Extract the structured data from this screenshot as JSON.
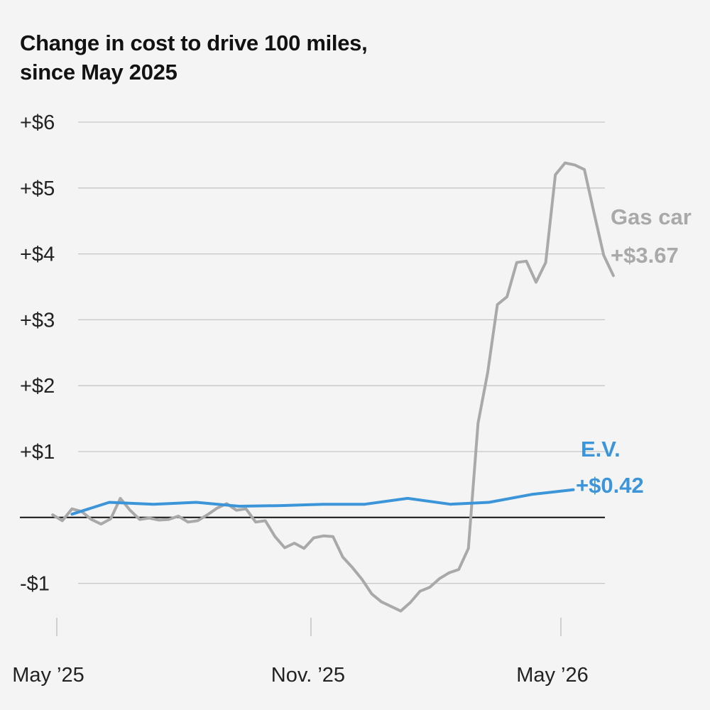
{
  "chart_data": {
    "type": "line",
    "title_line1": "Change in cost to drive 100 miles,",
    "title_line2": "since May 2025",
    "xlabel": "",
    "ylabel": "",
    "x_range": [
      "2025-05-01",
      "2026-06-06"
    ],
    "ylim": [
      -1.55,
      6
    ],
    "y_ticks": [
      {
        "value": 6,
        "label": "+$6"
      },
      {
        "value": 5,
        "label": "+$5"
      },
      {
        "value": 4,
        "label": "+$4"
      },
      {
        "value": 3,
        "label": "+$3"
      },
      {
        "value": 2,
        "label": "+$2"
      },
      {
        "value": 1,
        "label": "+$1"
      },
      {
        "value": -1,
        "label": "-$1"
      }
    ],
    "x_ticks": [
      {
        "date": "2025-05-01",
        "label": "May ’25"
      },
      {
        "date": "2025-11-01",
        "label": "Nov. ’25"
      },
      {
        "date": "2026-05-01",
        "label": "May ’26"
      }
    ],
    "grid": true,
    "series": [
      {
        "name": "Gas car",
        "end_label": "+$3.67",
        "color": "#a9a9a9",
        "points": [
          [
            "2025-04-28",
            0.04
          ],
          [
            "2025-05-05",
            -0.05
          ],
          [
            "2025-05-12",
            0.13
          ],
          [
            "2025-05-19",
            0.09
          ],
          [
            "2025-05-26",
            -0.03
          ],
          [
            "2025-06-02",
            -0.1
          ],
          [
            "2025-06-09",
            -0.02
          ],
          [
            "2025-06-16",
            0.29
          ],
          [
            "2025-06-23",
            0.11
          ],
          [
            "2025-06-30",
            -0.03
          ],
          [
            "2025-07-07",
            -0.01
          ],
          [
            "2025-07-14",
            -0.04
          ],
          [
            "2025-07-21",
            -0.03
          ],
          [
            "2025-07-28",
            0.02
          ],
          [
            "2025-08-04",
            -0.07
          ],
          [
            "2025-08-11",
            -0.05
          ],
          [
            "2025-08-18",
            0.04
          ],
          [
            "2025-08-25",
            0.14
          ],
          [
            "2025-09-01",
            0.21
          ],
          [
            "2025-09-08",
            0.11
          ],
          [
            "2025-09-15",
            0.13
          ],
          [
            "2025-09-22",
            -0.07
          ],
          [
            "2025-09-29",
            -0.05
          ],
          [
            "2025-10-06",
            -0.29
          ],
          [
            "2025-10-13",
            -0.46
          ],
          [
            "2025-10-20",
            -0.39
          ],
          [
            "2025-10-27",
            -0.47
          ],
          [
            "2025-11-03",
            -0.31
          ],
          [
            "2025-11-10",
            -0.28
          ],
          [
            "2025-11-17",
            -0.29
          ],
          [
            "2025-11-24",
            -0.6
          ],
          [
            "2025-12-01",
            -0.76
          ],
          [
            "2025-12-08",
            -0.94
          ],
          [
            "2025-12-15",
            -1.16
          ],
          [
            "2025-12-22",
            -1.28
          ],
          [
            "2025-12-29",
            -1.35
          ],
          [
            "2026-01-05",
            -1.42
          ],
          [
            "2026-01-12",
            -1.29
          ],
          [
            "2026-01-19",
            -1.12
          ],
          [
            "2026-01-26",
            -1.06
          ],
          [
            "2026-02-02",
            -0.93
          ],
          [
            "2026-02-09",
            -0.84
          ],
          [
            "2026-02-16",
            -0.79
          ],
          [
            "2026-02-23",
            -0.47
          ],
          [
            "2026-03-02",
            1.43
          ],
          [
            "2026-03-09",
            2.2
          ],
          [
            "2026-03-16",
            3.23
          ],
          [
            "2026-03-23",
            3.35
          ],
          [
            "2026-03-30",
            3.87
          ],
          [
            "2026-04-06",
            3.89
          ],
          [
            "2026-04-13",
            3.57
          ],
          [
            "2026-04-20",
            3.87
          ],
          [
            "2026-04-27",
            5.2
          ],
          [
            "2026-05-04",
            5.38
          ],
          [
            "2026-05-11",
            5.35
          ],
          [
            "2026-05-18",
            5.28
          ],
          [
            "2026-05-25",
            4.62
          ],
          [
            "2026-06-01",
            3.98
          ],
          [
            "2026-06-08",
            3.67
          ]
        ]
      },
      {
        "name": "E.V.",
        "end_label": "+$0.42",
        "color": "#3c95d9",
        "points": [
          [
            "2025-05-12",
            0.05
          ],
          [
            "2025-06-08",
            0.23
          ],
          [
            "2025-07-10",
            0.2
          ],
          [
            "2025-08-10",
            0.23
          ],
          [
            "2025-09-10",
            0.17
          ],
          [
            "2025-10-10",
            0.18
          ],
          [
            "2025-11-10",
            0.2
          ],
          [
            "2025-12-10",
            0.2
          ],
          [
            "2026-01-10",
            0.29
          ],
          [
            "2026-02-10",
            0.2
          ],
          [
            "2026-03-10",
            0.23
          ],
          [
            "2026-04-10",
            0.35
          ],
          [
            "2026-05-10",
            0.42
          ]
        ]
      }
    ],
    "baseline_value": 0
  }
}
